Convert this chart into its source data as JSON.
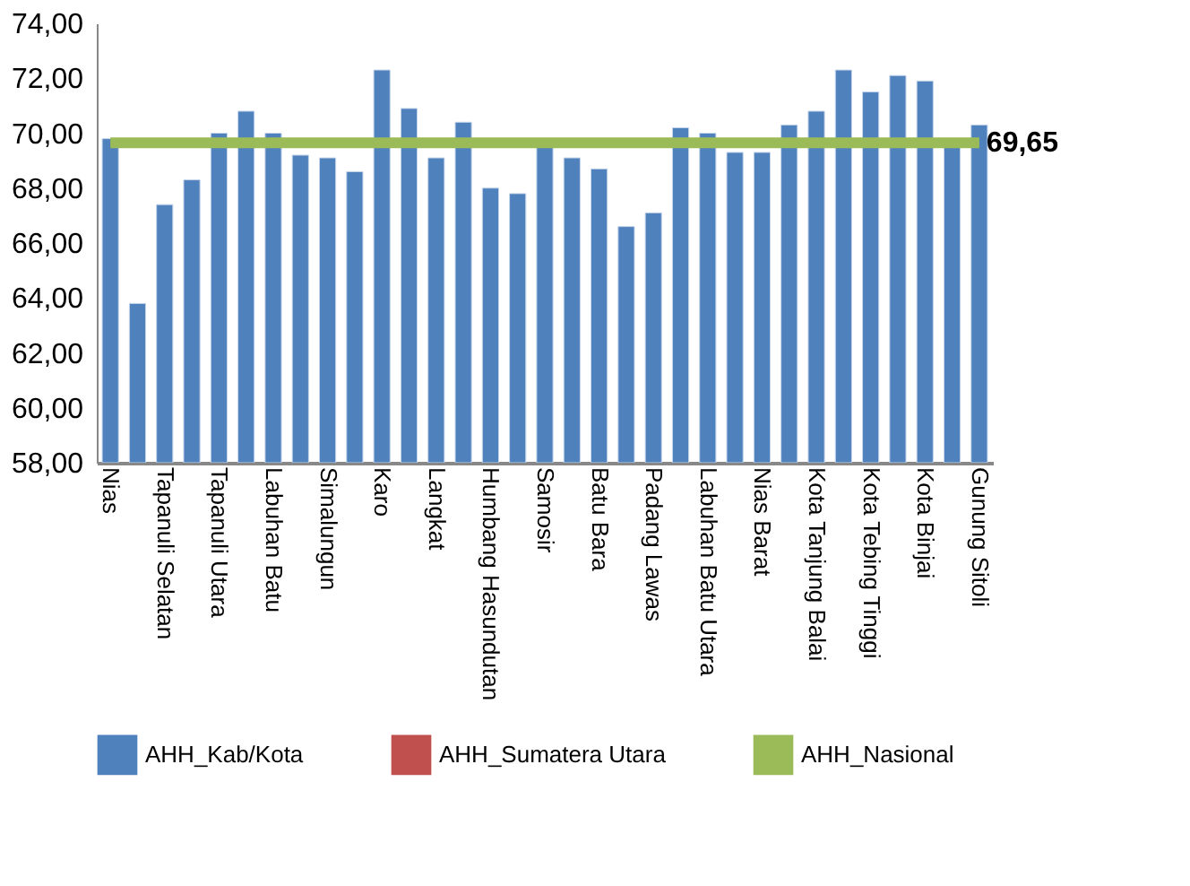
{
  "chart_data": {
    "type": "bar",
    "categories": [
      "Nias",
      null,
      "Tapanuli Selatan",
      null,
      "Tapanuli  Utara",
      null,
      "Labuhan Batu",
      null,
      "Simalungun",
      null,
      "Karo",
      null,
      "Langkat",
      null,
      "Humbang Hasundutan",
      null,
      "Samosir",
      null,
      "Batu Bara",
      null,
      "Padang Lawas",
      null,
      "Labuhan Batu Utara",
      null,
      "Nias Barat",
      null,
      "Kota Tanjung Balai",
      null,
      "Kota Tebing Tinggi",
      null,
      "Kota Binjai",
      null,
      "Gunung Sitoli"
    ],
    "series": [
      {
        "name": "AHH_Kab/Kota",
        "color": "#4f81bd",
        "values": [
          69.8,
          63.8,
          67.4,
          68.3,
          70.0,
          70.8,
          70.0,
          69.2,
          69.1,
          68.6,
          72.3,
          70.9,
          69.1,
          70.4,
          68.0,
          67.8,
          69.7,
          69.1,
          68.7,
          66.6,
          67.1,
          70.2,
          70.0,
          69.3,
          69.3,
          70.3,
          70.8,
          72.3,
          71.5,
          72.1,
          71.9,
          69.6,
          70.3
        ]
      },
      {
        "name": "AHH_Sumatera Utara",
        "type": "line",
        "color": "#c0504d",
        "values": [
          null,
          null,
          null,
          null,
          null,
          null,
          null,
          null,
          null,
          null,
          null,
          null,
          null,
          null,
          null,
          null,
          null,
          null,
          null,
          null,
          null,
          null,
          null,
          null,
          null,
          null,
          null,
          null,
          null,
          null,
          null,
          null,
          null
        ]
      },
      {
        "name": "AHH_Nasional",
        "type": "line",
        "color": "#9bbb59",
        "values": [
          69.65,
          69.65,
          69.65,
          69.65,
          69.65,
          69.65,
          69.65,
          69.65,
          69.65,
          69.65,
          69.65,
          69.65,
          69.65,
          69.65,
          69.65,
          69.65,
          69.65,
          69.65,
          69.65,
          69.65,
          69.65,
          69.65,
          69.65,
          69.65,
          69.65,
          69.65,
          69.65,
          69.65,
          69.65,
          69.65,
          69.65,
          69.65,
          69.65
        ],
        "value_labels": [
          null,
          null,
          null,
          null,
          null,
          null,
          null,
          null,
          null,
          null,
          null,
          null,
          null,
          null,
          null,
          null,
          null,
          null,
          null,
          null,
          null,
          null,
          null,
          null,
          null,
          null,
          null,
          null,
          null,
          null,
          null,
          null,
          "69,65"
        ]
      }
    ],
    "ylim": [
      58,
      74
    ],
    "yticks": [
      {
        "value": 58,
        "label": "58,00"
      },
      {
        "value": 60,
        "label": "60,00"
      },
      {
        "value": 62,
        "label": "62,00"
      },
      {
        "value": 64,
        "label": "64,00"
      },
      {
        "value": 66,
        "label": "66,00"
      },
      {
        "value": 68,
        "label": "68,00"
      },
      {
        "value": 70,
        "label": "70,00"
      },
      {
        "value": 72,
        "label": "72,00"
      },
      {
        "value": 74,
        "label": "74,00"
      }
    ],
    "grid": false,
    "legend": "bottom"
  }
}
